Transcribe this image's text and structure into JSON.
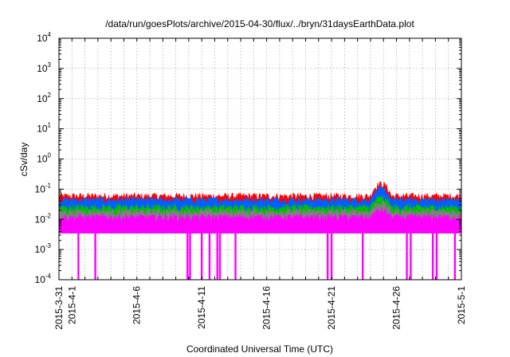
{
  "chart_data": {
    "type": "area",
    "title": "/data/run/goesPlots/archive/2015-04-30/flux/../bryn/31daysEarthData.plot",
    "xlabel": "Coordinated Universal Time (UTC)",
    "ylabel": "cSv/day",
    "x_start": "2015-03-31",
    "x_end": "2015-05-01",
    "xlim": [
      "2015-03-31",
      "2015-05-01"
    ],
    "ylim": [
      0.0001,
      10000
    ],
    "y_scale": "log",
    "grid": true,
    "x_ticks": [
      {
        "label": "2015-3-31",
        "day": 0
      },
      {
        "label": "2015-4-1",
        "day": 1
      },
      {
        "label": "2015-4-6",
        "day": 6
      },
      {
        "label": "2015-4-11",
        "day": 11
      },
      {
        "label": "2015-4-16",
        "day": 16
      },
      {
        "label": "2015-4-21",
        "day": 21
      },
      {
        "label": "2015-4-26",
        "day": 26
      },
      {
        "label": "2015-5-1",
        "day": 31
      }
    ],
    "y_ticks": [
      {
        "base": "10",
        "exp": "-4",
        "value": 0.0001
      },
      {
        "base": "10",
        "exp": "-3",
        "value": 0.001
      },
      {
        "base": "10",
        "exp": "-2",
        "value": 0.01
      },
      {
        "base": "10",
        "exp": "-1",
        "value": 0.1
      },
      {
        "base": "10",
        "exp": "0",
        "value": 1
      },
      {
        "base": "10",
        "exp": "1",
        "value": 10
      },
      {
        "base": "10",
        "exp": "2",
        "value": 100
      },
      {
        "base": "10",
        "exp": "3",
        "value": 1000
      },
      {
        "base": "10",
        "exp": "4",
        "value": 10000
      }
    ],
    "series": [
      {
        "color": "#ff0000",
        "base_level": 0.06,
        "peak_level": 0.15
      },
      {
        "color": "#0060ff",
        "base_level": 0.045,
        "peak_level": 0.1
      },
      {
        "color": "#00c000",
        "base_level": 0.025,
        "peak_level": 0.05
      },
      {
        "color": "#808080",
        "base_level": 0.018,
        "peak_level": 0.035
      },
      {
        "color": "#ff00ff",
        "base_level": 0.012,
        "peak_level": 0.02,
        "floor": 0.0035
      }
    ],
    "enhancement_period": {
      "start_day": 24.0,
      "end_day": 25.6
    },
    "dropouts_days": [
      1.5,
      2.8,
      9.9,
      10.1,
      11.0,
      11.6,
      12.2,
      12.4,
      13.6,
      20.7,
      21.0,
      23.4,
      26.8,
      27.1,
      28.8,
      29.1,
      30.5
    ]
  }
}
